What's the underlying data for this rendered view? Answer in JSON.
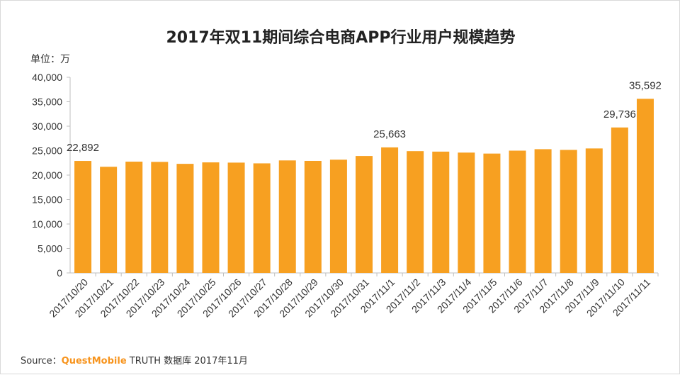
{
  "page": {
    "title": "2017年双11期间综合电商APP行业用户规模趋势",
    "unit_label": "单位：万",
    "source": {
      "prefix": "Source：",
      "brand": "QuestMobile",
      "rest": "TRUTH 数据库 2017年11月"
    }
  },
  "colors": {
    "bar": "#f7a021",
    "axis": "#bfbfbf",
    "brand": "#f7941d"
  },
  "chart_data": {
    "type": "bar",
    "title": "2017年双11期间综合电商APP行业用户规模趋势",
    "xlabel": "",
    "ylabel": "单位：万",
    "ylim": [
      0,
      40000
    ],
    "yticks": [
      "0",
      "5,000",
      "10,000",
      "15,000",
      "20,000",
      "25,000",
      "30,000",
      "35,000",
      "40,000"
    ],
    "grid": false,
    "categories": [
      "2017/10/20",
      "2017/10/21",
      "2017/10/22",
      "2017/10/23",
      "2017/10/24",
      "2017/10/25",
      "2017/10/26",
      "2017/10/27",
      "2017/10/28",
      "2017/10/29",
      "2017/10/30",
      "2017/10/31",
      "2017/11/1",
      "2017/11/2",
      "2017/11/3",
      "2017/11/4",
      "2017/11/5",
      "2017/11/6",
      "2017/11/7",
      "2017/11/8",
      "2017/11/9",
      "2017/11/10",
      "2017/11/11"
    ],
    "values": [
      22892,
      21700,
      22750,
      22700,
      22300,
      22600,
      22550,
      22400,
      23000,
      22900,
      23150,
      23900,
      25663,
      24900,
      24800,
      24600,
      24400,
      25000,
      25300,
      25150,
      25450,
      29736,
      35592
    ],
    "data_labels": [
      {
        "index": 0,
        "text": "22,892"
      },
      {
        "index": 12,
        "text": "25,663"
      },
      {
        "index": 21,
        "text": "29,736"
      },
      {
        "index": 22,
        "text": "35,592"
      }
    ]
  }
}
